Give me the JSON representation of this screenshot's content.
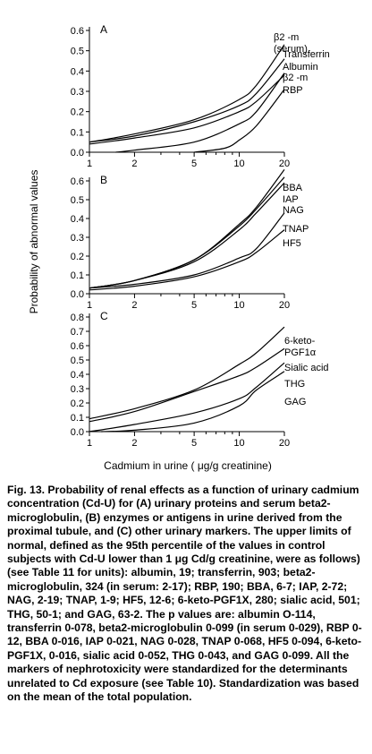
{
  "chart_data": {
    "type": "line",
    "ylabel": "Probability of abnormal values",
    "xlabel": "Cadmium in urine ( μg/g creatinine)",
    "x_scale": "log",
    "xlim": [
      1,
      20
    ],
    "x_ticks": [
      "1",
      "2",
      "5",
      "10",
      "20"
    ],
    "panels": [
      {
        "label": "A",
        "ylim": [
          0,
          0.6
        ],
        "y_ticks": [
          "0.0",
          "0.1",
          "0.2",
          "0.3",
          "0.4",
          "0.5",
          "0.6"
        ],
        "series": [
          {
            "name": "β2 -m (serum)",
            "points": [
              [
                1,
                0.05
              ],
              [
                2,
                0.09
              ],
              [
                5,
                0.16
              ],
              [
                10,
                0.26
              ],
              [
                13,
                0.33
              ],
              [
                20,
                0.53
              ]
            ]
          },
          {
            "name": "Transferrin",
            "points": [
              [
                1,
                0.05
              ],
              [
                2,
                0.08
              ],
              [
                5,
                0.15
              ],
              [
                10,
                0.23
              ],
              [
                13,
                0.29
              ],
              [
                20,
                0.46
              ]
            ]
          },
          {
            "name": "Albumin",
            "points": [
              [
                1,
                0.04
              ],
              [
                2,
                0.07
              ],
              [
                5,
                0.12
              ],
              [
                10,
                0.2
              ],
              [
                13,
                0.25
              ],
              [
                20,
                0.38
              ]
            ]
          },
          {
            "name": "β2 -m",
            "points": [
              [
                1.5,
                0.0
              ],
              [
                2,
                0.01
              ],
              [
                5,
                0.05
              ],
              [
                10,
                0.14
              ],
              [
                13,
                0.2
              ],
              [
                20,
                0.39
              ]
            ]
          },
          {
            "name": "RBP",
            "points": [
              [
                5,
                0.0
              ],
              [
                8,
                0.02
              ],
              [
                10,
                0.06
              ],
              [
                13,
                0.13
              ],
              [
                20,
                0.31
              ]
            ]
          }
        ]
      },
      {
        "label": "B",
        "ylim": [
          0,
          0.6
        ],
        "y_ticks": [
          "0.0",
          "0.1",
          "0.2",
          "0.3",
          "0.4",
          "0.5",
          "0.6"
        ],
        "series": [
          {
            "name": "BBA",
            "points": [
              [
                1,
                0.03
              ],
              [
                2,
                0.07
              ],
              [
                5,
                0.18
              ],
              [
                10,
                0.37
              ],
              [
                13,
                0.46
              ],
              [
                20,
                0.66
              ]
            ]
          },
          {
            "name": "IAP",
            "points": [
              [
                1,
                0.03
              ],
              [
                2,
                0.07
              ],
              [
                5,
                0.18
              ],
              [
                10,
                0.36
              ],
              [
                13,
                0.45
              ],
              [
                20,
                0.62
              ]
            ]
          },
          {
            "name": "NAG",
            "points": [
              [
                1,
                0.03
              ],
              [
                2,
                0.07
              ],
              [
                5,
                0.17
              ],
              [
                10,
                0.34
              ],
              [
                13,
                0.43
              ],
              [
                20,
                0.59
              ]
            ]
          },
          {
            "name": "TNAP",
            "points": [
              [
                1,
                0.03
              ],
              [
                2,
                0.05
              ],
              [
                5,
                0.1
              ],
              [
                10,
                0.19
              ],
              [
                13,
                0.24
              ],
              [
                20,
                0.43
              ]
            ]
          },
          {
            "name": "HF5",
            "points": [
              [
                1,
                0.02
              ],
              [
                2,
                0.04
              ],
              [
                5,
                0.09
              ],
              [
                10,
                0.17
              ],
              [
                13,
                0.22
              ],
              [
                20,
                0.34
              ]
            ]
          }
        ]
      },
      {
        "label": "C",
        "ylim": [
          0,
          0.8
        ],
        "y_ticks": [
          "0.0",
          "0.1",
          "0.2",
          "0.3",
          "0.4",
          "0.5",
          "0.6",
          "0.7",
          "0.8"
        ],
        "series": [
          {
            "name": "6-keto- PGF1α",
            "points": [
              [
                1,
                0.09
              ],
              [
                2,
                0.16
              ],
              [
                5,
                0.29
              ],
              [
                10,
                0.47
              ],
              [
                13,
                0.55
              ],
              [
                20,
                0.73
              ]
            ]
          },
          {
            "name": "Sialic acid",
            "points": [
              [
                1,
                0.07
              ],
              [
                2,
                0.14
              ],
              [
                5,
                0.28
              ],
              [
                10,
                0.39
              ],
              [
                13,
                0.45
              ],
              [
                20,
                0.58
              ]
            ]
          },
          {
            "name": "THG",
            "points": [
              [
                1,
                0.0
              ],
              [
                2,
                0.05
              ],
              [
                5,
                0.13
              ],
              [
                10,
                0.23
              ],
              [
                13,
                0.31
              ],
              [
                20,
                0.48
              ]
            ]
          },
          {
            "name": "GAG",
            "points": [
              [
                1.2,
                0.0
              ],
              [
                2,
                0.01
              ],
              [
                5,
                0.06
              ],
              [
                10,
                0.18
              ],
              [
                13,
                0.29
              ],
              [
                20,
                0.42
              ]
            ]
          }
        ]
      }
    ]
  },
  "caption": "Fig. 13. Probability of renal effects as a function of urinary cadmium concentration (Cd-U) for (A) urinary proteins and serum beta2-microglobulin, (B) enzymes or antigens in urine derived from the proximal tubule, and (C) other urinary markers. The upper limits of normal, defined as the 95th percentile of the values in control subjects with Cd-U lower than 1 μg Cd/g creatinine, were as follows) (see Table 11 for units): albumin, 19; transferrin, 903; beta2-microglobulin, 324 (in serum: 2-17); RBP, 190; BBA, 6-7; IAP, 2-72; NAG, 2-19; TNAP, 1-9; HF5, 12-6; 6-keto-PGF1X, 280; sialic acid, 501; THG, 50-1; and GAG, 63-2. The p values are: albumin O-114, transferrin 0-078, beta2-microglobulin 0-099 (in serum 0-029), RBP 0-12, BBA 0-016, IAP 0-021, NAG 0-028, TNAP 0-068, HF5 0-094, 6-keto-PGF1X, 0-016, sialic acid 0-052, THG 0-043, and GAG 0-099. All the markers of nephrotoxicity were standardized for the determinants unrelated to Cd exposure (see Table 10). Standardization was based on the mean of the total population."
}
